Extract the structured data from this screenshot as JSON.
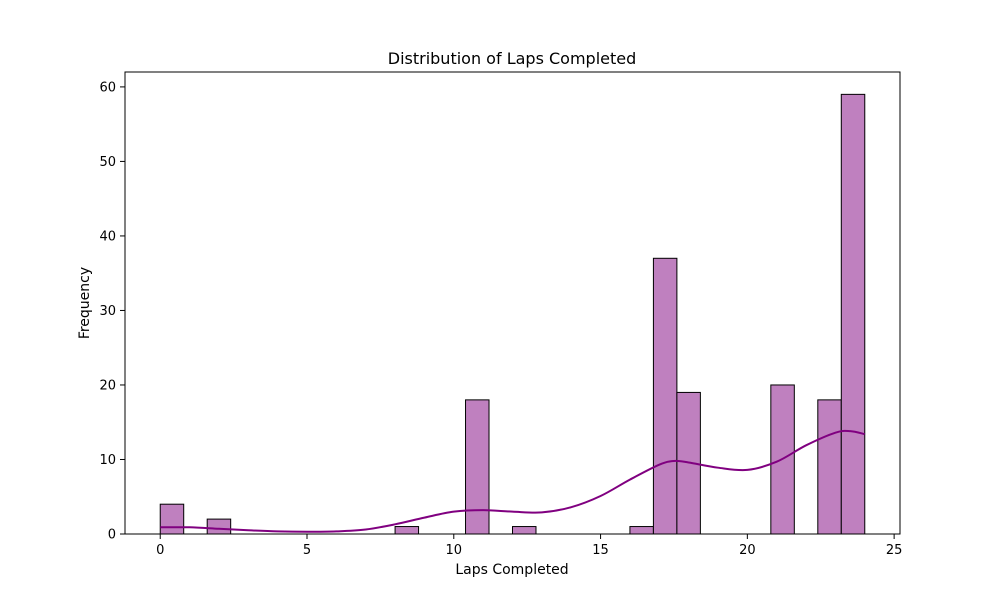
{
  "chart_data": {
    "type": "bar",
    "subtype": "histogram-with-kde",
    "title": "Distribution of Laps Completed",
    "xlabel": "Laps Completed",
    "ylabel": "Frequency",
    "xlim": [
      -1.2,
      25.2
    ],
    "ylim": [
      0,
      62
    ],
    "xticks": [
      0,
      5,
      10,
      15,
      20,
      25
    ],
    "yticks": [
      0,
      10,
      20,
      30,
      40,
      50,
      60
    ],
    "grid": false,
    "bar_color": "#bf80bf",
    "edge_color": "#000000",
    "kde_color": "#800080",
    "bins": [
      {
        "x0": 0.0,
        "x1": 0.8,
        "count": 4
      },
      {
        "x0": 1.6,
        "x1": 2.4,
        "count": 2
      },
      {
        "x0": 8.0,
        "x1": 8.8,
        "count": 1
      },
      {
        "x0": 10.4,
        "x1": 11.2,
        "count": 18
      },
      {
        "x0": 12.0,
        "x1": 12.8,
        "count": 1
      },
      {
        "x0": 16.0,
        "x1": 16.8,
        "count": 1
      },
      {
        "x0": 16.8,
        "x1": 17.6,
        "count": 37
      },
      {
        "x0": 17.6,
        "x1": 18.4,
        "count": 19
      },
      {
        "x0": 20.8,
        "x1": 21.6,
        "count": 20
      },
      {
        "x0": 22.4,
        "x1": 23.2,
        "count": 18
      },
      {
        "x0": 23.2,
        "x1": 24.0,
        "count": 59
      }
    ],
    "kde": {
      "x": [
        0,
        1,
        2,
        3,
        4,
        5,
        6,
        7,
        8,
        9,
        10,
        11,
        12,
        13,
        14,
        15,
        16,
        17,
        17.5,
        18,
        19,
        20,
        21,
        22,
        23,
        23.5,
        24
      ],
      "y": [
        0.9,
        0.9,
        0.7,
        0.5,
        0.35,
        0.3,
        0.35,
        0.6,
        1.3,
        2.2,
        3.0,
        3.2,
        3.0,
        2.9,
        3.6,
        5.1,
        7.3,
        9.3,
        9.8,
        9.6,
        8.9,
        8.6,
        9.7,
        11.9,
        13.6,
        13.8,
        13.4
      ]
    }
  }
}
